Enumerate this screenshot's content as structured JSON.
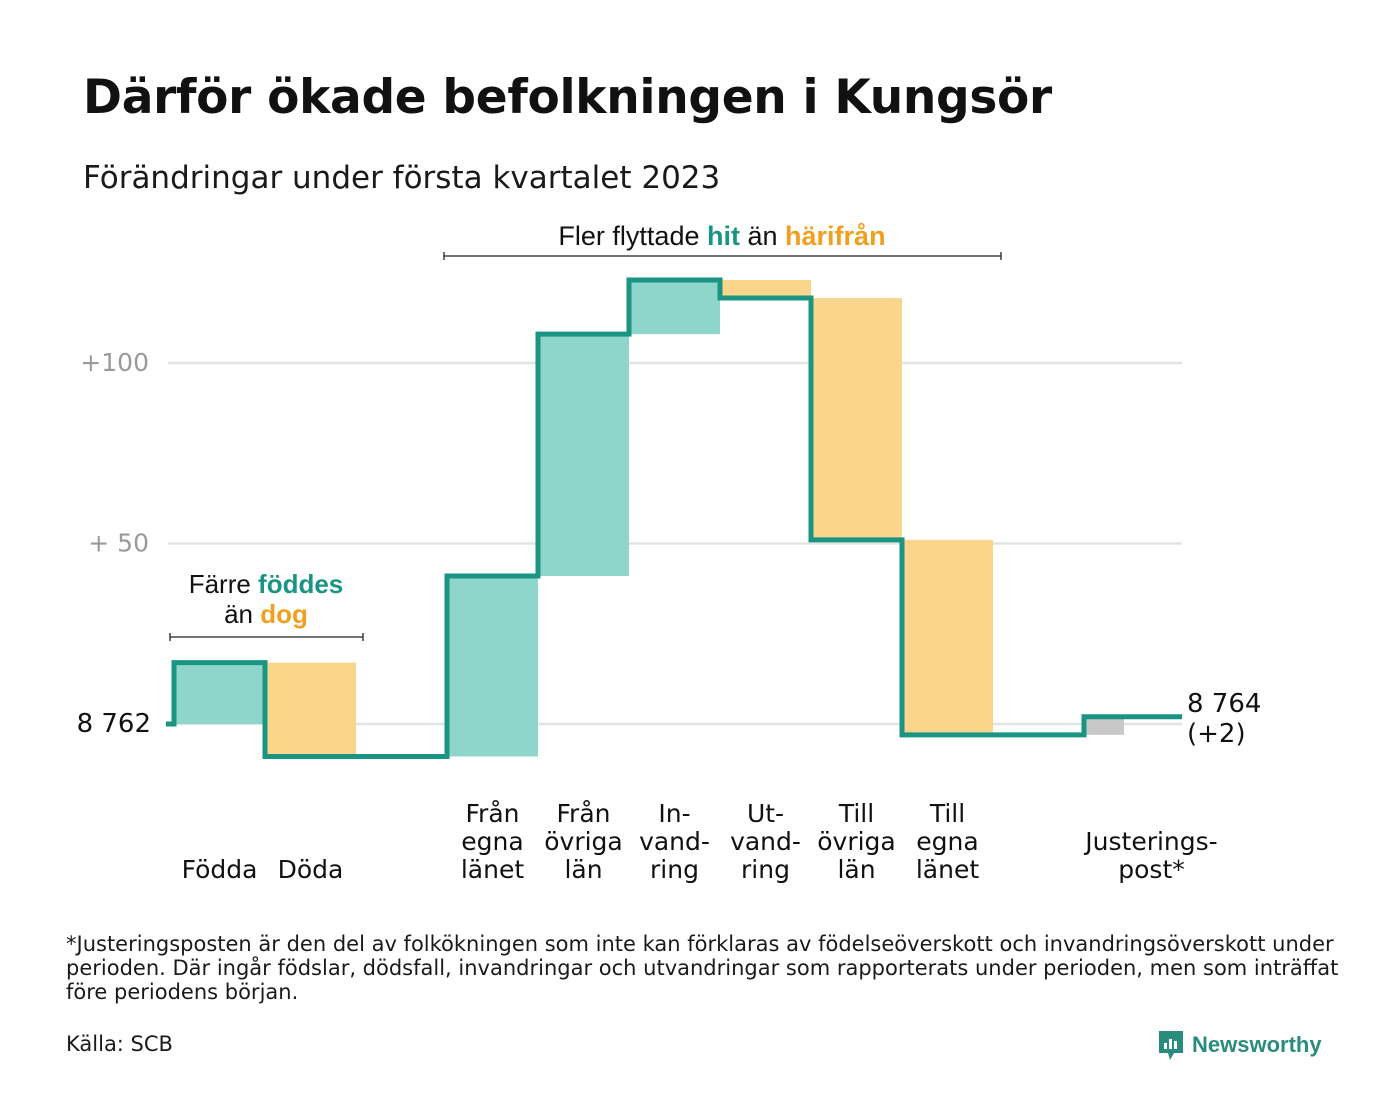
{
  "header": {
    "title": "Därför ökade befolkningen i Kungsör",
    "subtitle": "Förändringar under första kvartalet 2023"
  },
  "colors": {
    "in": "#8ed6cb",
    "out": "#fad68c",
    "line": "#1a9483",
    "accent_out": "#f0a020",
    "adjust": "#c8c8c8",
    "grid": "#e3e3e3"
  },
  "chart_data": {
    "type": "waterfall",
    "start_value": 8762,
    "end_value": 8764,
    "start_label": "8 762",
    "end_label": [
      "8 764",
      "(+2)"
    ],
    "ytick_labels": [
      {
        "value": 100,
        "label": "+100"
      },
      {
        "value": 50,
        "label": "+ 50"
      }
    ],
    "ylim": [
      -12,
      125
    ],
    "steps": [
      {
        "key": "fodda",
        "label": [
          "Födda"
        ],
        "delta": 17,
        "kind": "in"
      },
      {
        "key": "doda",
        "label": [
          "Döda"
        ],
        "delta": -26,
        "kind": "out"
      },
      {
        "key": "gap",
        "label": [],
        "delta": 0,
        "kind": "gap"
      },
      {
        "key": "fran-egna-lanet",
        "label": [
          "Från",
          "egna",
          "länet"
        ],
        "delta": 50,
        "kind": "in"
      },
      {
        "key": "fran-ovriga-lan",
        "label": [
          "Från",
          "övriga",
          "län"
        ],
        "delta": 67,
        "kind": "in"
      },
      {
        "key": "invandring",
        "label": [
          "In-",
          "vand-",
          "ring"
        ],
        "delta": 15,
        "kind": "in"
      },
      {
        "key": "utvandring",
        "label": [
          "Ut-",
          "vand-",
          "ring"
        ],
        "delta": -5,
        "kind": "out"
      },
      {
        "key": "till-ovriga-lan",
        "label": [
          "Till",
          "övriga",
          "län"
        ],
        "delta": -67,
        "kind": "out"
      },
      {
        "key": "till-egna-lanet",
        "label": [
          "Till",
          "egna",
          "länet"
        ],
        "delta": -54,
        "kind": "out"
      },
      {
        "key": "gap2",
        "label": [],
        "delta": 0,
        "kind": "gap"
      },
      {
        "key": "justeringspost",
        "label": [
          "Justerings-",
          "post*"
        ],
        "delta": 5,
        "kind": "adjust"
      }
    ],
    "annotations": [
      {
        "key": "births",
        "parts": [
          {
            "text": "Färre ",
            "style": "plain"
          },
          {
            "text": "föddes",
            "style": "in"
          },
          {
            "br": true
          },
          {
            "text": "än ",
            "style": "plain"
          },
          {
            "text": "dog",
            "style": "out"
          }
        ]
      },
      {
        "key": "migration",
        "parts": [
          {
            "text": "Fler flyttade ",
            "style": "plain"
          },
          {
            "text": "hit",
            "style": "in"
          },
          {
            "text": " än ",
            "style": "plain"
          },
          {
            "text": "härifrån",
            "style": "out"
          }
        ]
      }
    ]
  },
  "footer": {
    "footnote": "*Justeringsposten är den del av folkökningen som inte kan förklaras av födelseöverskott och invandringsöverskott under perioden. Där ingår födslar, dödsfall, invandringar och utvandringar som rapporterats under perioden, men som inträffat före periodens början.",
    "source": "Källa: SCB",
    "logo_text": "Newsworthy",
    "logo_icon": "newsworthy-logo-icon"
  }
}
